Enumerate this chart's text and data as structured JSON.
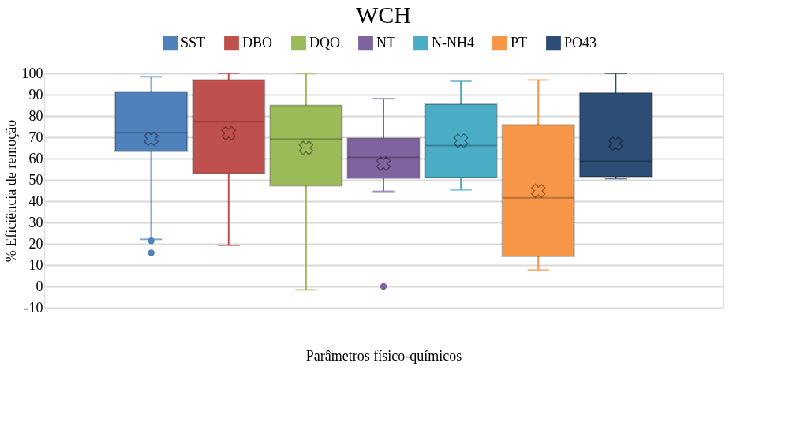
{
  "chart_data": {
    "type": "box",
    "title": "WCH",
    "xlabel": "Parâmetros físico-químicos",
    "ylabel": "% Eficiência de remoção",
    "categories": [
      null
    ],
    "ylim": [
      -10,
      100
    ],
    "yticks": [
      -10,
      0,
      10,
      20,
      30,
      40,
      50,
      60,
      70,
      80,
      90,
      100
    ],
    "grid": "y",
    "legend": "top",
    "marker": "cross",
    "series": [
      {
        "name": "SST",
        "color": "#4f81bd",
        "boxes": [
          {
            "low": 22.1,
            "q1": 63.3,
            "median": 72.1,
            "q3": 91.4,
            "high": 98.4,
            "mean": 69.3,
            "outliers": [
              21.4,
              15.8
            ]
          }
        ]
      },
      {
        "name": "DBO",
        "color": "#c0504d",
        "boxes": [
          {
            "low": 19.3,
            "q1": 53.1,
            "median": 77.3,
            "q3": 96.9,
            "high": 100,
            "mean": 71.9
          }
        ]
      },
      {
        "name": "DQO",
        "color": "#9bbb59",
        "boxes": [
          {
            "low": -1.6,
            "q1": 47.2,
            "median": 69.2,
            "q3": 85,
            "high": 100,
            "mean": 65
          }
        ]
      },
      {
        "name": "NT",
        "color": "#8064a2",
        "boxes": [
          {
            "low": 44.6,
            "q1": 50.7,
            "median": 60.6,
            "q3": 69.5,
            "high": 88.1,
            "mean": 57.6,
            "outliers": [
              0
            ]
          }
        ]
      },
      {
        "name": "N-NH4",
        "color": "#4bacc6",
        "boxes": [
          {
            "low": 45.3,
            "q1": 51.1,
            "median": 66.1,
            "q3": 85.6,
            "high": 96.3,
            "mean": 68.4
          }
        ]
      },
      {
        "name": "PT",
        "color": "#f79646",
        "boxes": [
          {
            "low": 7.7,
            "q1": 14.1,
            "median": 41.6,
            "q3": 75.8,
            "high": 96.9,
            "mean": 44.8
          }
        ]
      },
      {
        "name": "PO43",
        "color": "#2c4d75",
        "boxes": [
          {
            "low": 50.6,
            "q1": 51.5,
            "median": 58.8,
            "q3": 90.8,
            "high": 100,
            "mean": 67
          }
        ]
      }
    ]
  }
}
